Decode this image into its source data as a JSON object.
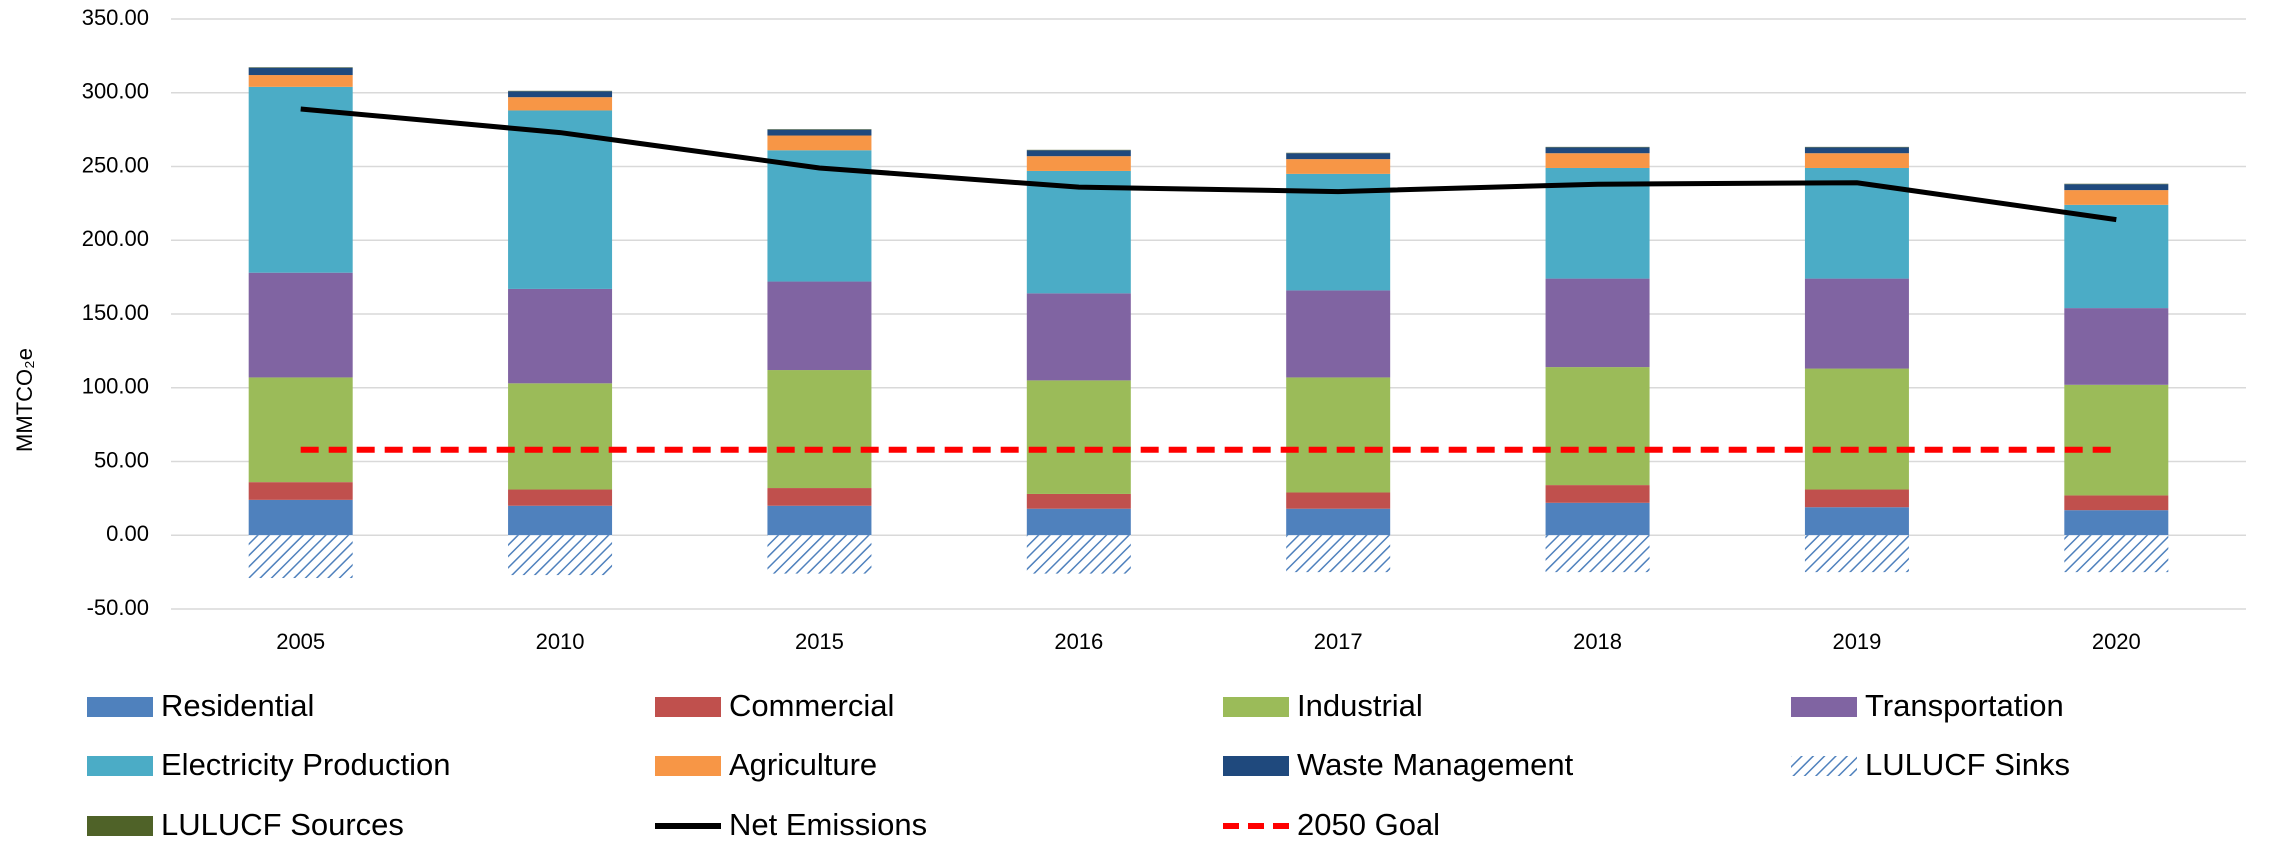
{
  "chart_data": {
    "type": "stacked_bar_line",
    "y_label": "MMTCO₂e",
    "categories": [
      "2005",
      "2010",
      "2015",
      "2016",
      "2017",
      "2018",
      "2019",
      "2020"
    ],
    "ylim": [
      -50,
      350
    ],
    "yticks": [
      {
        "value": -50,
        "label": "-50.00"
      },
      {
        "value": 0,
        "label": "0.00"
      },
      {
        "value": 50,
        "label": "50.00"
      },
      {
        "value": 100,
        "label": "100.00"
      },
      {
        "value": 150,
        "label": "150.00"
      },
      {
        "value": 200,
        "label": "200.00"
      },
      {
        "value": 250,
        "label": "250.00"
      },
      {
        "value": 300,
        "label": "300.00"
      },
      {
        "value": 350,
        "label": "350.00"
      }
    ],
    "grid": true,
    "legend": "bottom",
    "series": [
      {
        "name": "Residential",
        "kind": "bar",
        "color": "#4f81bd",
        "values": [
          24,
          20,
          20,
          18,
          18,
          22,
          19,
          17
        ]
      },
      {
        "name": "Commercial",
        "kind": "bar",
        "color": "#c0504d",
        "values": [
          12,
          11,
          12,
          10,
          11,
          12,
          12,
          10
        ]
      },
      {
        "name": "Industrial",
        "kind": "bar",
        "color": "#9bbb59",
        "values": [
          71,
          72,
          80,
          77,
          78,
          80,
          82,
          75
        ]
      },
      {
        "name": "Transportation",
        "kind": "bar",
        "color": "#8064a2",
        "values": [
          71,
          64,
          60,
          59,
          59,
          60,
          61,
          52
        ]
      },
      {
        "name": "Electricity Production",
        "kind": "bar",
        "color": "#4bacc6",
        "values": [
          126,
          121,
          89,
          83,
          79,
          75,
          75,
          70
        ]
      },
      {
        "name": "Agriculture",
        "kind": "bar",
        "color": "#f79646",
        "values": [
          8,
          9,
          10,
          10,
          10,
          10,
          10,
          10
        ]
      },
      {
        "name": "Waste Management",
        "kind": "bar",
        "color": "#1f497d",
        "values": [
          5,
          4,
          4,
          4,
          4,
          4,
          4,
          4
        ]
      },
      {
        "name": "LULUCF Sinks",
        "kind": "bar",
        "color": "#4f81bd",
        "hatch": true,
        "values": [
          -29,
          -27,
          -26,
          -26,
          -25,
          -25,
          -25,
          -25
        ]
      },
      {
        "name": "LULUCF Sources",
        "kind": "bar",
        "color": "#4f6228",
        "values": [
          0.3,
          0.3,
          0.3,
          0.3,
          0.3,
          0.3,
          0.3,
          0.3
        ]
      },
      {
        "name": "Net Emissions",
        "kind": "line",
        "color": "#000000",
        "values": [
          289,
          273,
          249,
          236,
          233,
          238,
          239,
          214
        ]
      },
      {
        "name": "2050 Goal",
        "kind": "line",
        "color": "#ff0000",
        "dashed": true,
        "values": [
          58,
          58,
          58,
          58,
          58,
          58,
          58,
          58
        ]
      }
    ]
  }
}
